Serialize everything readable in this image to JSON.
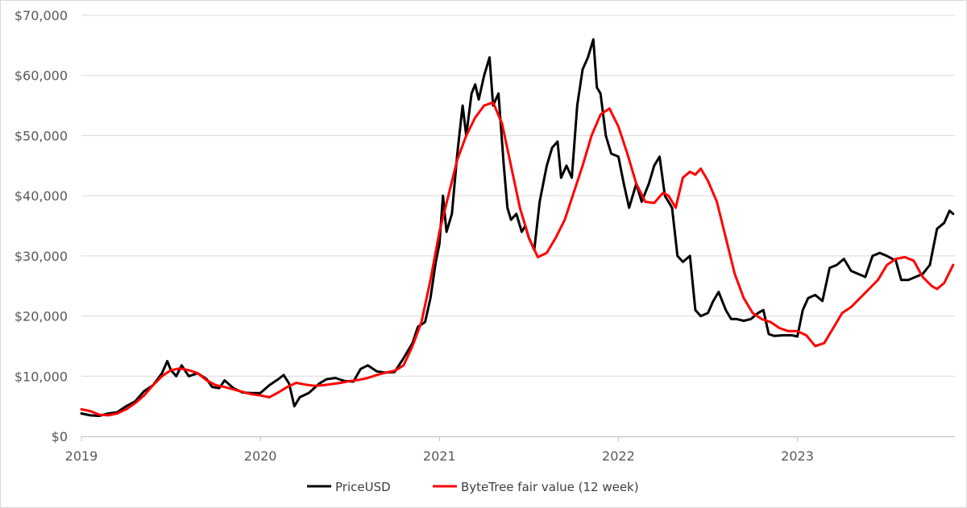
{
  "chart_data": {
    "type": "line",
    "title": "",
    "xlabel": "",
    "ylabel": "",
    "xlim": [
      2019.0,
      2023.88
    ],
    "ylim": [
      0,
      70000
    ],
    "grid": "horizontal",
    "legend_position": "bottom",
    "x_ticks": [
      "2019",
      "2020",
      "2021",
      "2022",
      "2023"
    ],
    "y_ticks": [
      "$0",
      "$10,000",
      "$20,000",
      "$30,000",
      "$40,000",
      "$50,000",
      "$60,000",
      "$70,000"
    ],
    "series": [
      {
        "name": "PriceUSD",
        "color": "#000000",
        "points": [
          [
            2019.0,
            3800
          ],
          [
            2019.05,
            3500
          ],
          [
            2019.1,
            3400
          ],
          [
            2019.15,
            3800
          ],
          [
            2019.2,
            4000
          ],
          [
            2019.25,
            5000
          ],
          [
            2019.3,
            5800
          ],
          [
            2019.35,
            7500
          ],
          [
            2019.4,
            8500
          ],
          [
            2019.45,
            10500
          ],
          [
            2019.48,
            12500
          ],
          [
            2019.5,
            11000
          ],
          [
            2019.53,
            10000
          ],
          [
            2019.56,
            11800
          ],
          [
            2019.6,
            10000
          ],
          [
            2019.65,
            10500
          ],
          [
            2019.7,
            9500
          ],
          [
            2019.73,
            8200
          ],
          [
            2019.77,
            8000
          ],
          [
            2019.8,
            9300
          ],
          [
            2019.85,
            8000
          ],
          [
            2019.9,
            7300
          ],
          [
            2019.95,
            7200
          ],
          [
            2020.0,
            7200
          ],
          [
            2020.05,
            8500
          ],
          [
            2020.1,
            9500
          ],
          [
            2020.13,
            10200
          ],
          [
            2020.16,
            8800
          ],
          [
            2020.19,
            5000
          ],
          [
            2020.22,
            6500
          ],
          [
            2020.27,
            7200
          ],
          [
            2020.33,
            8800
          ],
          [
            2020.37,
            9500
          ],
          [
            2020.42,
            9700
          ],
          [
            2020.47,
            9200
          ],
          [
            2020.52,
            9100
          ],
          [
            2020.56,
            11200
          ],
          [
            2020.6,
            11800
          ],
          [
            2020.65,
            10800
          ],
          [
            2020.7,
            10600
          ],
          [
            2020.75,
            10700
          ],
          [
            2020.8,
            13000
          ],
          [
            2020.85,
            15500
          ],
          [
            2020.88,
            18200
          ],
          [
            2020.92,
            19000
          ],
          [
            2020.95,
            23000
          ],
          [
            2020.98,
            29000
          ],
          [
            2021.0,
            32000
          ],
          [
            2021.02,
            40000
          ],
          [
            2021.04,
            34000
          ],
          [
            2021.07,
            37000
          ],
          [
            2021.1,
            47000
          ],
          [
            2021.13,
            55000
          ],
          [
            2021.15,
            50000
          ],
          [
            2021.18,
            57000
          ],
          [
            2021.2,
            58500
          ],
          [
            2021.22,
            56000
          ],
          [
            2021.25,
            60000
          ],
          [
            2021.28,
            63000
          ],
          [
            2021.3,
            55000
          ],
          [
            2021.33,
            57000
          ],
          [
            2021.36,
            45000
          ],
          [
            2021.38,
            38000
          ],
          [
            2021.4,
            36000
          ],
          [
            2021.43,
            37000
          ],
          [
            2021.46,
            34000
          ],
          [
            2021.48,
            35000
          ],
          [
            2021.5,
            33000
          ],
          [
            2021.53,
            31000
          ],
          [
            2021.56,
            39000
          ],
          [
            2021.6,
            45000
          ],
          [
            2021.63,
            48000
          ],
          [
            2021.66,
            49000
          ],
          [
            2021.68,
            43000
          ],
          [
            2021.71,
            45000
          ],
          [
            2021.74,
            43000
          ],
          [
            2021.77,
            55000
          ],
          [
            2021.8,
            61000
          ],
          [
            2021.83,
            63000
          ],
          [
            2021.86,
            66000
          ],
          [
            2021.88,
            58000
          ],
          [
            2021.9,
            57000
          ],
          [
            2021.93,
            50000
          ],
          [
            2021.96,
            47000
          ],
          [
            2022.0,
            46500
          ],
          [
            2022.03,
            42000
          ],
          [
            2022.06,
            38000
          ],
          [
            2022.1,
            42000
          ],
          [
            2022.13,
            39000
          ],
          [
            2022.17,
            42000
          ],
          [
            2022.2,
            45000
          ],
          [
            2022.23,
            46500
          ],
          [
            2022.26,
            40000
          ],
          [
            2022.3,
            38000
          ],
          [
            2022.33,
            30000
          ],
          [
            2022.36,
            29000
          ],
          [
            2022.4,
            30000
          ],
          [
            2022.43,
            21000
          ],
          [
            2022.46,
            20000
          ],
          [
            2022.5,
            20500
          ],
          [
            2022.53,
            22500
          ],
          [
            2022.56,
            24000
          ],
          [
            2022.6,
            21000
          ],
          [
            2022.63,
            19500
          ],
          [
            2022.66,
            19500
          ],
          [
            2022.7,
            19200
          ],
          [
            2022.74,
            19500
          ],
          [
            2022.78,
            20500
          ],
          [
            2022.81,
            21000
          ],
          [
            2022.84,
            17000
          ],
          [
            2022.87,
            16700
          ],
          [
            2022.92,
            16800
          ],
          [
            2022.97,
            16800
          ],
          [
            2023.0,
            16600
          ],
          [
            2023.03,
            21000
          ],
          [
            2023.06,
            23000
          ],
          [
            2023.1,
            23500
          ],
          [
            2023.14,
            22500
          ],
          [
            2023.18,
            28000
          ],
          [
            2023.22,
            28500
          ],
          [
            2023.26,
            29500
          ],
          [
            2023.3,
            27500
          ],
          [
            2023.34,
            27000
          ],
          [
            2023.38,
            26500
          ],
          [
            2023.42,
            30000
          ],
          [
            2023.46,
            30500
          ],
          [
            2023.5,
            30000
          ],
          [
            2023.55,
            29200
          ],
          [
            2023.58,
            26000
          ],
          [
            2023.62,
            26000
          ],
          [
            2023.66,
            26500
          ],
          [
            2023.7,
            27000
          ],
          [
            2023.74,
            28500
          ],
          [
            2023.78,
            34500
          ],
          [
            2023.82,
            35500
          ],
          [
            2023.85,
            37500
          ],
          [
            2023.87,
            37000
          ]
        ]
      },
      {
        "name": "ByteTree fair value (12 week)",
        "color": "#ff0000",
        "points": [
          [
            2019.0,
            4500
          ],
          [
            2019.05,
            4200
          ],
          [
            2019.1,
            3600
          ],
          [
            2019.15,
            3500
          ],
          [
            2019.2,
            3800
          ],
          [
            2019.25,
            4500
          ],
          [
            2019.3,
            5500
          ],
          [
            2019.35,
            6800
          ],
          [
            2019.4,
            8500
          ],
          [
            2019.45,
            10000
          ],
          [
            2019.5,
            11000
          ],
          [
            2019.55,
            11300
          ],
          [
            2019.6,
            11000
          ],
          [
            2019.65,
            10500
          ],
          [
            2019.7,
            9300
          ],
          [
            2019.75,
            8500
          ],
          [
            2019.8,
            8200
          ],
          [
            2019.85,
            7800
          ],
          [
            2019.9,
            7400
          ],
          [
            2019.95,
            7000
          ],
          [
            2020.0,
            6800
          ],
          [
            2020.05,
            6500
          ],
          [
            2020.1,
            7300
          ],
          [
            2020.15,
            8200
          ],
          [
            2020.2,
            8900
          ],
          [
            2020.25,
            8600
          ],
          [
            2020.3,
            8400
          ],
          [
            2020.35,
            8500
          ],
          [
            2020.4,
            8700
          ],
          [
            2020.45,
            8900
          ],
          [
            2020.5,
            9200
          ],
          [
            2020.55,
            9400
          ],
          [
            2020.6,
            9700
          ],
          [
            2020.65,
            10200
          ],
          [
            2020.7,
            10600
          ],
          [
            2020.75,
            10900
          ],
          [
            2020.8,
            11800
          ],
          [
            2020.85,
            15000
          ],
          [
            2020.9,
            19000
          ],
          [
            2020.95,
            26000
          ],
          [
            2021.0,
            34000
          ],
          [
            2021.05,
            40000
          ],
          [
            2021.1,
            46000
          ],
          [
            2021.15,
            50000
          ],
          [
            2021.2,
            53000
          ],
          [
            2021.25,
            55000
          ],
          [
            2021.3,
            55500
          ],
          [
            2021.35,
            52000
          ],
          [
            2021.4,
            45000
          ],
          [
            2021.45,
            38000
          ],
          [
            2021.5,
            33000
          ],
          [
            2021.55,
            29800
          ],
          [
            2021.6,
            30500
          ],
          [
            2021.65,
            33000
          ],
          [
            2021.7,
            36000
          ],
          [
            2021.75,
            40500
          ],
          [
            2021.8,
            45000
          ],
          [
            2021.85,
            50000
          ],
          [
            2021.9,
            53500
          ],
          [
            2021.95,
            54500
          ],
          [
            2022.0,
            51500
          ],
          [
            2022.05,
            47000
          ],
          [
            2022.1,
            42000
          ],
          [
            2022.15,
            39000
          ],
          [
            2022.2,
            38800
          ],
          [
            2022.25,
            40500
          ],
          [
            2022.28,
            40000
          ],
          [
            2022.32,
            38000
          ],
          [
            2022.36,
            43000
          ],
          [
            2022.4,
            44000
          ],
          [
            2022.43,
            43500
          ],
          [
            2022.46,
            44500
          ],
          [
            2022.5,
            42500
          ],
          [
            2022.55,
            39000
          ],
          [
            2022.6,
            33000
          ],
          [
            2022.65,
            27000
          ],
          [
            2022.7,
            23000
          ],
          [
            2022.75,
            20500
          ],
          [
            2022.8,
            19500
          ],
          [
            2022.85,
            19000
          ],
          [
            2022.9,
            18000
          ],
          [
            2022.95,
            17500
          ],
          [
            2023.0,
            17500
          ],
          [
            2023.05,
            16800
          ],
          [
            2023.1,
            15000
          ],
          [
            2023.15,
            15500
          ],
          [
            2023.2,
            18000
          ],
          [
            2023.25,
            20500
          ],
          [
            2023.3,
            21500
          ],
          [
            2023.35,
            23000
          ],
          [
            2023.4,
            24500
          ],
          [
            2023.45,
            26000
          ],
          [
            2023.5,
            28500
          ],
          [
            2023.55,
            29500
          ],
          [
            2023.6,
            29800
          ],
          [
            2023.65,
            29200
          ],
          [
            2023.7,
            26500
          ],
          [
            2023.75,
            25000
          ],
          [
            2023.78,
            24500
          ],
          [
            2023.82,
            25500
          ],
          [
            2023.87,
            28500
          ]
        ]
      }
    ]
  }
}
